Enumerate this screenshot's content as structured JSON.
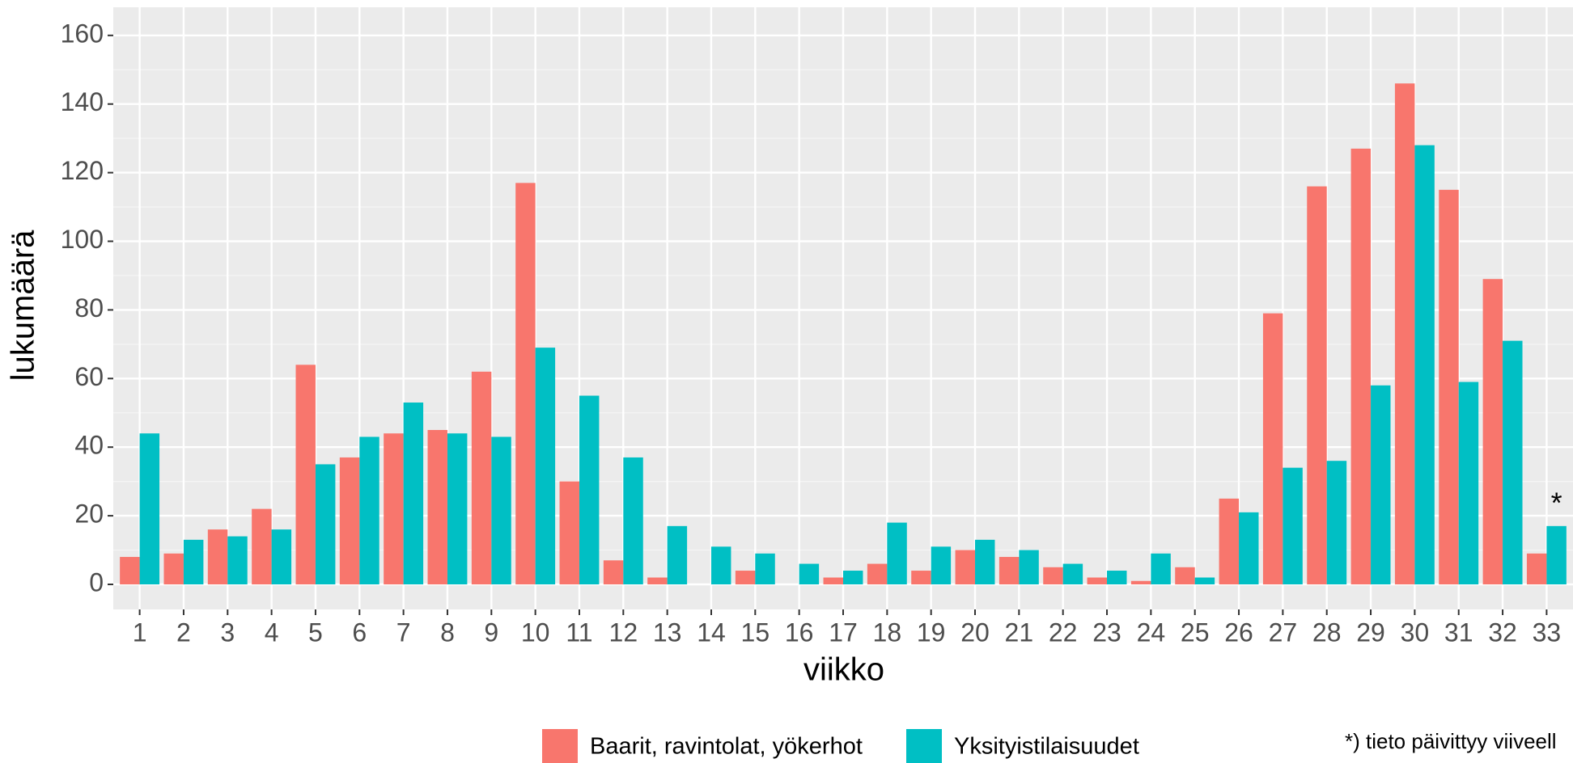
{
  "chart_data": {
    "type": "bar",
    "xlabel": "viikko",
    "ylabel": "lukumäärä",
    "categories": [
      "1",
      "2",
      "3",
      "4",
      "5",
      "6",
      "7",
      "8",
      "9",
      "10",
      "11",
      "12",
      "13",
      "14",
      "15",
      "16",
      "17",
      "18",
      "19",
      "20",
      "21",
      "22",
      "23",
      "24",
      "25",
      "26",
      "27",
      "28",
      "29",
      "30",
      "31",
      "32",
      "33"
    ],
    "series": [
      {
        "name": "Baarit, ravintolat, yökerhot",
        "color": "#f8766d",
        "values": [
          8,
          9,
          16,
          22,
          64,
          37,
          44,
          45,
          62,
          117,
          30,
          7,
          2,
          0,
          4,
          0,
          2,
          6,
          4,
          10,
          8,
          5,
          2,
          1,
          5,
          25,
          79,
          116,
          127,
          146,
          115,
          89,
          9
        ]
      },
      {
        "name": "Yksityistilaisuudet",
        "color": "#00bfc4",
        "values": [
          44,
          13,
          14,
          16,
          35,
          43,
          53,
          44,
          43,
          69,
          55,
          37,
          17,
          11,
          9,
          6,
          4,
          18,
          11,
          13,
          10,
          6,
          4,
          9,
          2,
          21,
          34,
          36,
          58,
          128,
          59,
          71,
          17
        ]
      }
    ],
    "ylim": [
      -7.3,
      168.2
    ],
    "yticks": [
      0,
      20,
      40,
      60,
      80,
      100,
      120,
      140,
      160
    ],
    "grid": true,
    "annotation": "*",
    "footnote": "*) tieto päivittyy viiveell"
  }
}
